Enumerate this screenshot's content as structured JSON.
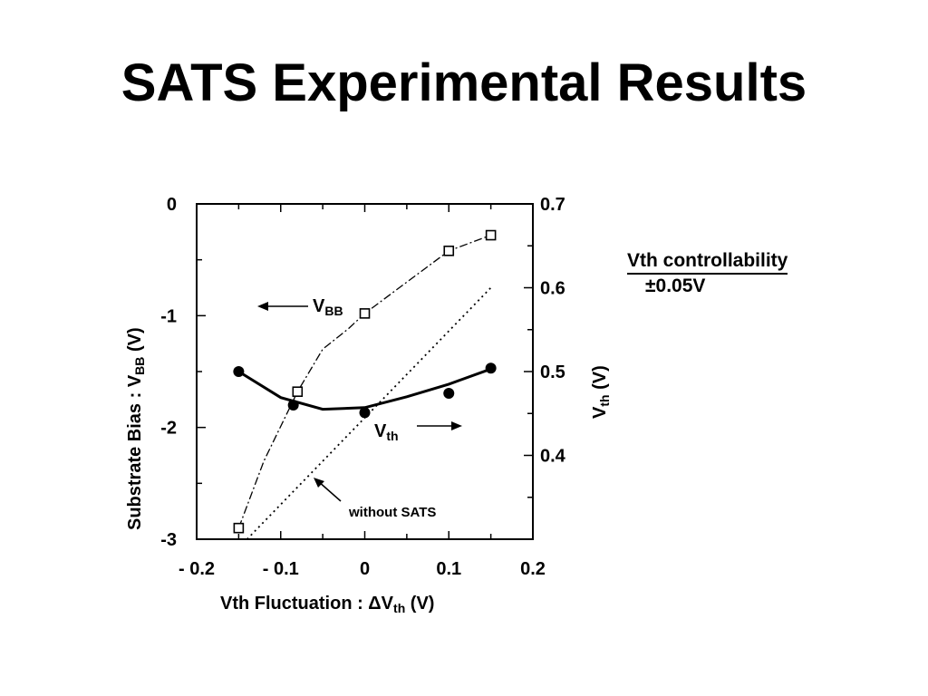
{
  "title": "SATS Experimental Results",
  "note": {
    "line1": "Vth controllability",
    "line2": "±0.05V"
  },
  "chart_data": {
    "type": "line",
    "xlabel_main": "Vth Fluctuation : ΔV",
    "xlabel_sub": "th",
    "xlabel_unit": "(V)",
    "ylabel_left_main": "Substrate Bias : V",
    "ylabel_left_sub": "BB",
    "ylabel_left_unit": "(V)",
    "ylabel_right_main": "V",
    "ylabel_right_sub": "th",
    "ylabel_right_unit": "(V)",
    "xlim": [
      -0.2,
      0.2
    ],
    "ylim_left": [
      -3,
      0
    ],
    "ylim_right": [
      0.3,
      0.7
    ],
    "x_ticks": [
      -0.2,
      -0.1,
      0,
      0.1,
      0.2
    ],
    "x_tick_labels": [
      "- 0.2",
      "- 0.1",
      "0",
      "0.1",
      "0.2"
    ],
    "y_left_ticks": [
      0,
      -1,
      -2,
      -3
    ],
    "y_left_tick_labels": [
      "0",
      "-1",
      "-2",
      "-3"
    ],
    "y_right_ticks": [
      0.7,
      0.6,
      0.5,
      0.4
    ],
    "y_right_tick_labels": [
      "0.7",
      "0.6",
      "0.5",
      "0.4"
    ],
    "grid": false,
    "series": [
      {
        "label_main": "V",
        "label_sub": "BB",
        "axis": "left",
        "marker": "open-square",
        "line_style": "dash-dot",
        "x": [
          -0.15,
          -0.08,
          0,
          0.1,
          0.15
        ],
        "y": [
          -2.9,
          -1.68,
          -0.98,
          -0.42,
          -0.28
        ],
        "curve_x": [
          -0.15,
          -0.12,
          -0.08,
          -0.05,
          -0.02,
          0,
          0.05,
          0.1,
          0.15
        ],
        "curve_y": [
          -2.9,
          -2.3,
          -1.68,
          -1.3,
          -1.12,
          -0.98,
          -0.7,
          -0.42,
          -0.28
        ]
      },
      {
        "label_main": "V",
        "label_sub": "th",
        "axis": "right",
        "marker": "filled-circle",
        "line_style": "solid",
        "x": [
          -0.15,
          -0.085,
          0,
          0.1,
          0.15
        ],
        "y": [
          0.5,
          0.46,
          0.451,
          0.474,
          0.504
        ],
        "curve_x": [
          -0.15,
          -0.1,
          -0.05,
          0,
          0.05,
          0.1,
          0.15
        ],
        "curve_y": [
          0.5,
          0.469,
          0.455,
          0.457,
          0.47,
          0.485,
          0.503
        ]
      },
      {
        "label": "without SATS",
        "axis": "right",
        "marker": "none",
        "line_style": "dotted",
        "curve_x": [
          -0.14,
          0.15
        ],
        "curve_y": [
          0.3,
          0.6
        ]
      }
    ]
  }
}
